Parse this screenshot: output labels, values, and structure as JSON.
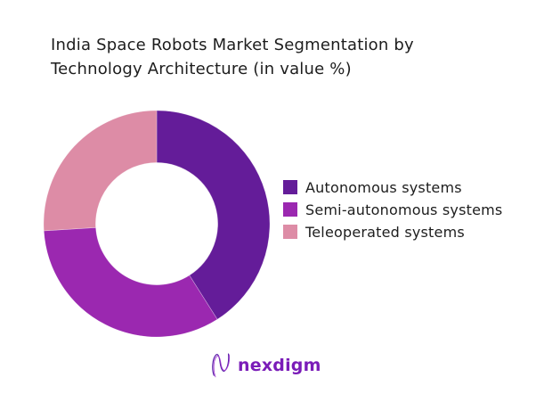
{
  "page": {
    "background": "#ffffff"
  },
  "title": {
    "text": "India Space Robots Market Segmentation by Technology Architecture (in value %)"
  },
  "chart_data": {
    "type": "pie",
    "subtype": "donut",
    "title": "India Space Robots Market Segmentation by Technology Architecture (in value %)",
    "labels": [
      "Autonomous systems",
      "Semi-autonomous systems",
      "Teleoperated systems"
    ],
    "values": [
      41,
      33,
      26
    ],
    "unit": "value %",
    "colors": [
      "#641c99",
      "#9b28b0",
      "#dd8ca6"
    ],
    "start_angle_deg": 0,
    "direction": "clockwise",
    "inner_radius_ratio": 0.54,
    "legend_position": "right",
    "data_labels_shown": false
  },
  "legend": {
    "items": [
      {
        "label": "Autonomous systems",
        "color": "#641c99"
      },
      {
        "label": "Semi-autonomous systems",
        "color": "#9b28b0"
      },
      {
        "label": "Teleoperated systems",
        "color": "#dd8ca6"
      }
    ]
  },
  "footer": {
    "logo_text": "nexdigm",
    "logo_color": "#7a1cb8"
  }
}
